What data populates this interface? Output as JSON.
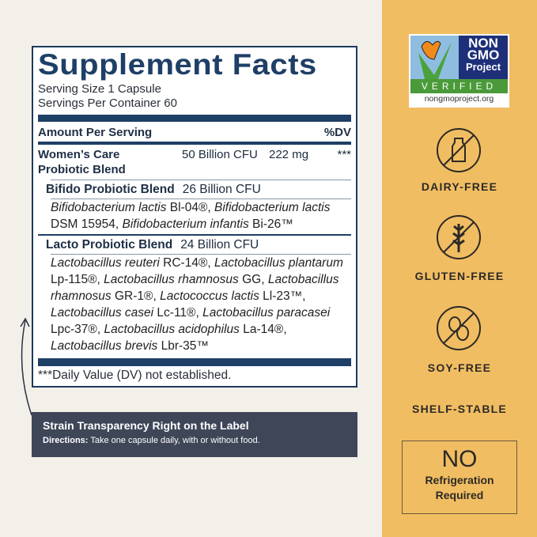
{
  "label": {
    "title": "Supplement Facts",
    "serving_size": "Serving Size 1 Capsule",
    "servings_per_container": "Servings Per Container 60",
    "amount_header": "Amount Per Serving",
    "dv_header": "%DV",
    "main_blend": {
      "name_line1": "Women’s Care",
      "name_line2": "Probiotic Blend",
      "cfu": "50 Billion CFU",
      "weight": "222 mg",
      "dv": "***"
    },
    "bifido": {
      "name": "Bifido Probiotic Blend",
      "cfu": "26 Billion CFU",
      "strains": [
        {
          "species": "Bifidobacterium lactis",
          "code": "Bl-04®"
        },
        {
          "species": "Bifidobacterium lactis",
          "code": "DSM 15954"
        },
        {
          "species": "Bifidobacterium infantis",
          "code": "Bi-26™"
        }
      ]
    },
    "lacto": {
      "name": "Lacto Probiotic Blend",
      "cfu": "24 Billion CFU",
      "strains": [
        {
          "species": "Lactobacillus reuteri",
          "code": "RC-14®"
        },
        {
          "species": "Lactobacillus plantarum",
          "code": "Lp-115®"
        },
        {
          "species": "Lactobacillus rhamnosus",
          "code": "GG"
        },
        {
          "species": "Lactobacillus rhamnosus",
          "code": "GR-1®"
        },
        {
          "species": "Lactococcus lactis",
          "code": "Ll-23™"
        },
        {
          "species": "Lactobacillus casei",
          "code": "Lc-11®"
        },
        {
          "species": "Lactobacillus paracasei",
          "code": "Lpc-37®"
        },
        {
          "species": "Lactobacillus acidophilus",
          "code": "La-14®"
        },
        {
          "species": "Lactobacillus brevis",
          "code": "Lbr-35™"
        }
      ]
    },
    "footnote": "***Daily Value (DV) not established."
  },
  "band": {
    "heading": "Strain Transparency Right on the Label",
    "directions_label": "Directions:",
    "directions": " Take one capsule daily, with or without food."
  },
  "logo": {
    "line1": "NON",
    "line2": "GMO",
    "line3": "Project",
    "verified": "VERIFIED",
    "url": "nongmoproject.org"
  },
  "features": [
    {
      "icon": "no-dairy-icon",
      "label": "DAIRY-FREE"
    },
    {
      "icon": "no-gluten-icon",
      "label": "GLUTEN-FREE"
    },
    {
      "icon": "no-soy-icon",
      "label": "SOY-FREE"
    },
    {
      "label": "SHELF-STABLE"
    }
  ],
  "refrigeration": {
    "big": "NO",
    "line1": "Refrigeration",
    "line2": "Required"
  },
  "colors": {
    "navy": "#1e3f66",
    "panel": "#f1bd62",
    "band": "#3e4658",
    "background": "#f3efe9"
  }
}
